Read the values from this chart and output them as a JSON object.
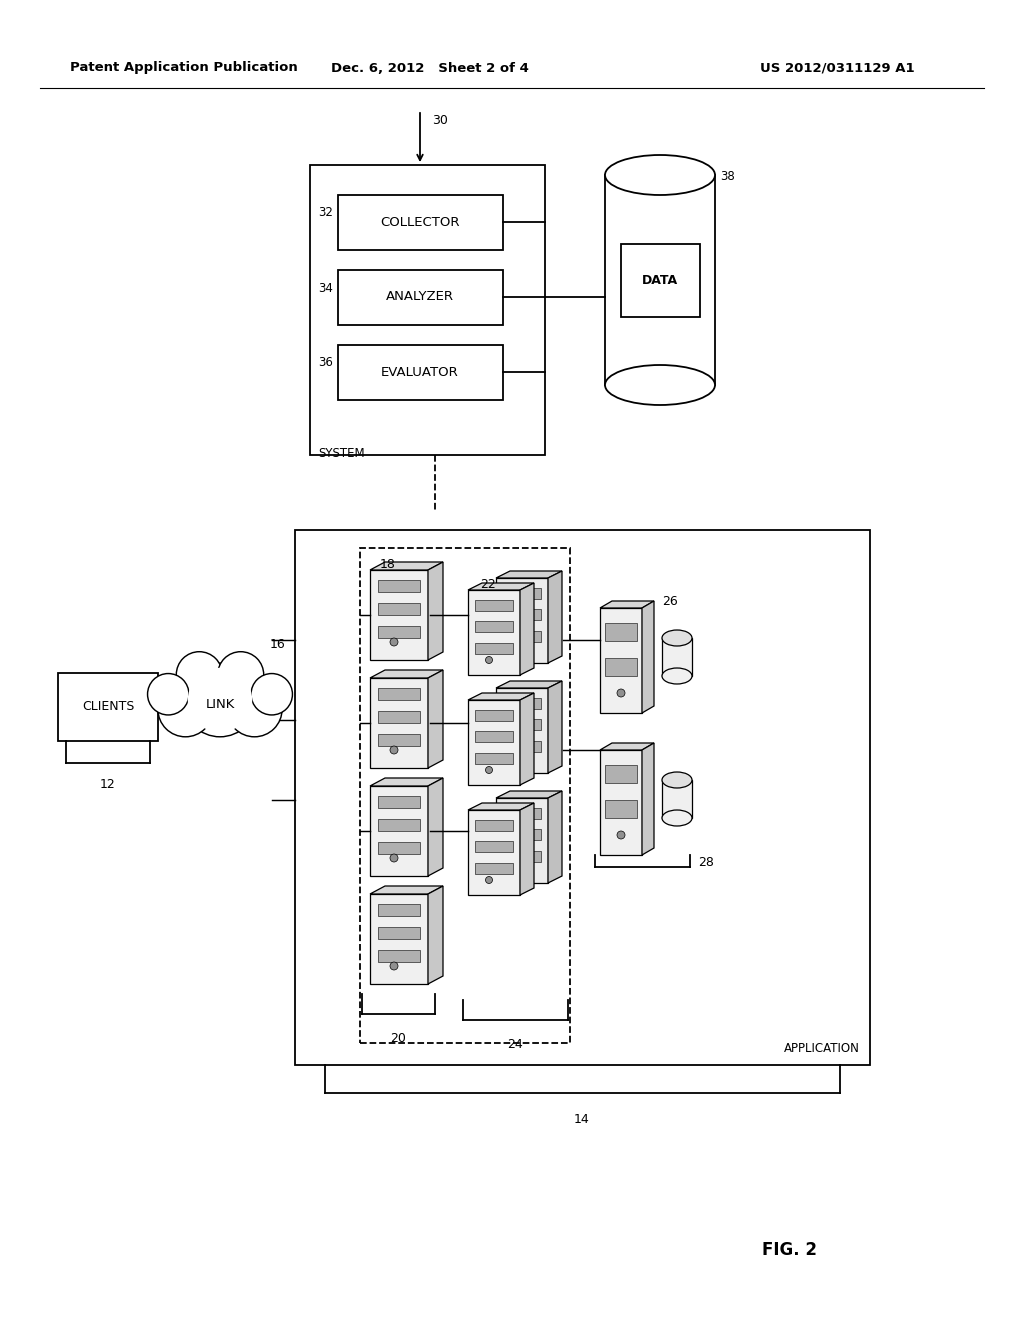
{
  "bg_color": "#ffffff",
  "header_left": "Patent Application Publication",
  "header_mid": "Dec. 6, 2012   Sheet 2 of 4",
  "header_right": "US 2012/0311129 A1",
  "fig_label": "FIG. 2"
}
